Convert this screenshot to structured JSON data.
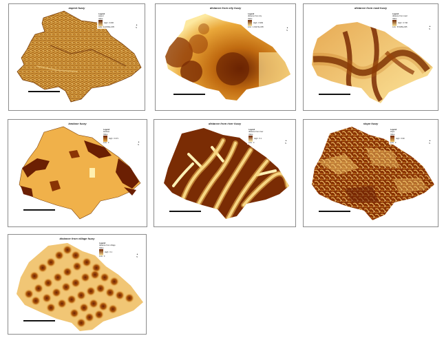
{
  "panels": [
    {
      "title": "aspect fuzzy",
      "legend": {
        "header": "Legend",
        "layer": "aspect",
        "field": "Value",
        "high": "High : 0.606",
        "low": "Low : 1.16034e-005"
      },
      "ramp": [
        "#5a1a02",
        "#f3d48a"
      ]
    },
    {
      "title": "distance from city fuzzy",
      "legend": {
        "header": "Legend",
        "layer": "distance from city",
        "field": "Value",
        "high": "High : 0.999",
        "low": "Low : 1.91174e-005"
      },
      "ramp": [
        "#6b2403",
        "#fde9a0"
      ]
    },
    {
      "title": "distance from road fuzzy",
      "legend": {
        "header": "Legend",
        "layer": "distance from road",
        "field": "Value",
        "high": "High : 0.746",
        "low": "Low : 8.5195e-005"
      },
      "ramp": [
        "#6b2403",
        "#fde9a0"
      ]
    },
    {
      "title": "landuse fuzzy",
      "legend": {
        "header": "Legend",
        "layer": "landuse",
        "field": "Value",
        "high": "High : 0.371",
        "low": "Low : 0"
      },
      "ramp": [
        "#6b1f03",
        "#f0b14a"
      ]
    },
    {
      "title": "distance from river fuzzy",
      "legend": {
        "header": "Legend",
        "layer": "distance from river",
        "field": "Value",
        "high": "High : 0.1",
        "low": "Low : 0"
      },
      "ramp": [
        "#6b1f03",
        "#fdf0b5"
      ]
    },
    {
      "title": "slope fuzzy",
      "legend": {
        "header": "Legend",
        "layer": "slope",
        "field": "Value",
        "high": "High : 0.99",
        "low": "Low : 0"
      },
      "ramp": [
        "#6b1f03",
        "#f3c56a"
      ]
    },
    {
      "title": "distance from village fuzzy",
      "legend": {
        "header": "Legend",
        "layer": "distance from village",
        "field": "Value",
        "high": "High : 0.1",
        "low": "Low : 0"
      },
      "ramp": [
        "#6b1f03",
        "#fbe39a"
      ]
    }
  ],
  "north_label": "N",
  "scale_labels": [
    "0",
    "2.5",
    "5",
    "10",
    "15",
    "20"
  ],
  "colors": {
    "dark": "#6b2403",
    "mid": "#d88a1c",
    "light": "#fbe39a",
    "pale": "#fff6d0",
    "border": "#8a8a8a"
  }
}
